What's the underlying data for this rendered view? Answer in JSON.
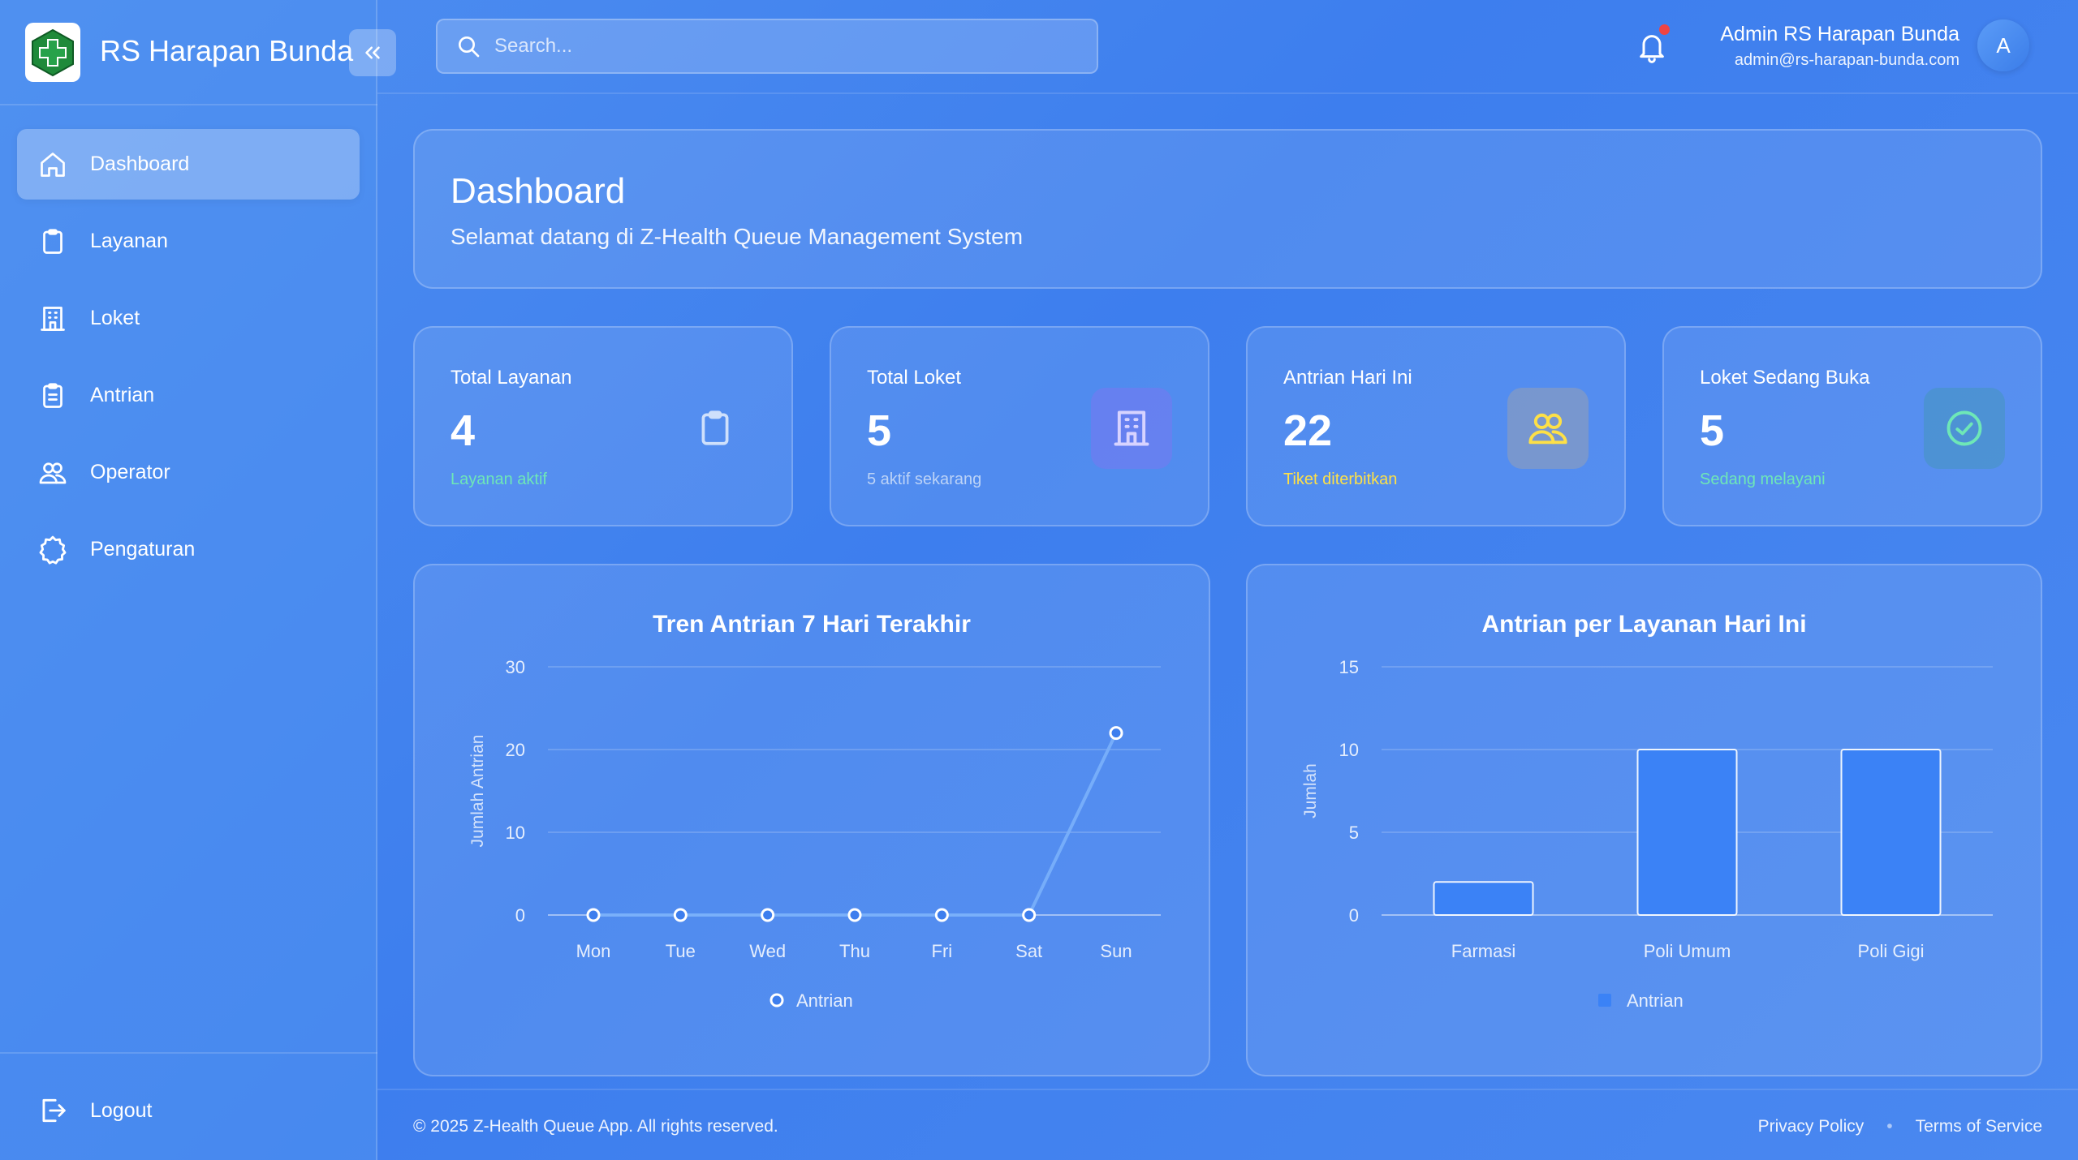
{
  "brand": {
    "name": "RS Harapan Bunda",
    "logo_icon": "hospital-cross-logo",
    "collapse_icon": "chevrons-left-icon"
  },
  "sidebar": {
    "items": [
      {
        "label": "Dashboard",
        "icon": "home-icon",
        "active": true
      },
      {
        "label": "Layanan",
        "icon": "clipboard-icon"
      },
      {
        "label": "Loket",
        "icon": "building-icon"
      },
      {
        "label": "Antrian",
        "icon": "clipboard-list-icon"
      },
      {
        "label": "Operator",
        "icon": "users-icon"
      },
      {
        "label": "Pengaturan",
        "icon": "gear-icon"
      }
    ],
    "logout_label": "Logout"
  },
  "header": {
    "search_placeholder": "Search...",
    "user_name": "Admin RS Harapan Bunda",
    "user_email": "admin@rs-harapan-bunda.com",
    "avatar_initial": "A"
  },
  "welcome": {
    "title": "Dashboard",
    "subtitle": "Selamat datang di Z-Health Queue Management System"
  },
  "stats": [
    {
      "label": "Total Layanan",
      "value": "4",
      "sub": "Layanan aktif",
      "sub_color": "#6ee7b7",
      "icon": "clipboard-icon"
    },
    {
      "label": "Total Loket",
      "value": "5",
      "sub": "5 aktif sekarang",
      "sub_color": "#bcd3f7",
      "icon": "building-icon"
    },
    {
      "label": "Antrian Hari Ini",
      "value": "22",
      "sub": "Tiket diterbitkan",
      "sub_color": "#fde047",
      "icon": "users-icon"
    },
    {
      "label": "Loket Sedang Buka",
      "value": "5",
      "sub": "Sedang melayani",
      "sub_color": "#6ee7b7",
      "icon": "check-circle-icon"
    }
  ],
  "chart_data": [
    {
      "type": "line",
      "title": "Tren Antrian 7 Hari Terakhir",
      "categories": [
        "Mon",
        "Tue",
        "Wed",
        "Thu",
        "Fri",
        "Sat",
        "Sun"
      ],
      "series": [
        {
          "name": "Antrian",
          "values": [
            0,
            0,
            0,
            0,
            0,
            0,
            22
          ]
        }
      ],
      "xlabel": "",
      "ylabel": "Jumlah Antrian",
      "ylim": [
        0,
        30
      ],
      "yticks": [
        0,
        10,
        20,
        30
      ],
      "grid": true,
      "legend": "bottom"
    },
    {
      "type": "bar",
      "title": "Antrian per Layanan Hari Ini",
      "categories": [
        "Farmasi",
        "Poli Umum",
        "Poli Gigi"
      ],
      "series": [
        {
          "name": "Antrian",
          "values": [
            2,
            10,
            10
          ]
        }
      ],
      "xlabel": "",
      "ylabel": "Jumlah",
      "ylim": [
        0,
        15
      ],
      "yticks": [
        0,
        5,
        10,
        15
      ],
      "grid": true,
      "legend": "bottom"
    }
  ],
  "footer": {
    "copyright": "© 2025 Z-Health Queue App. All rights reserved.",
    "links": [
      "Privacy Policy",
      "Terms of Service"
    ],
    "separator": "•"
  }
}
